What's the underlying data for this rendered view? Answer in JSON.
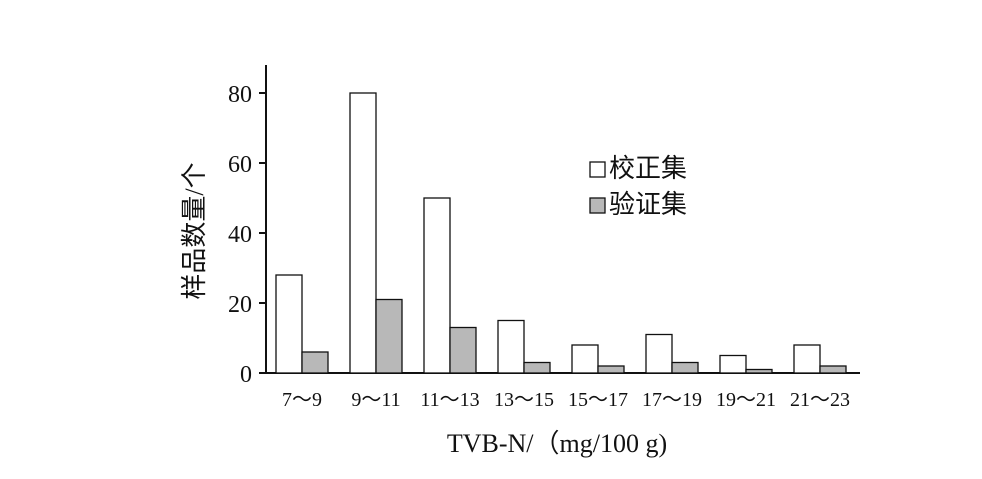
{
  "chart_data": {
    "type": "bar",
    "title": "",
    "xlabel": "TVB-N/（mg/100 g)",
    "ylabel": "样品数量/个",
    "categories": [
      "7～9",
      "9～11",
      "11～13",
      "13～15",
      "15～17",
      "17～19",
      "19～21",
      "21～23"
    ],
    "series": [
      {
        "name": "校正集",
        "values": [
          28,
          80,
          50,
          15,
          8,
          11,
          5,
          8
        ],
        "color": "#ffffff"
      },
      {
        "name": "验证集",
        "values": [
          6,
          21,
          13,
          3,
          2,
          3,
          1,
          2
        ],
        "color": "#b8b8b8"
      }
    ],
    "ylim": [
      0,
      88
    ],
    "yticks": [
      0,
      20,
      40,
      60,
      80
    ],
    "grid": false,
    "legend_position": "top-right"
  }
}
